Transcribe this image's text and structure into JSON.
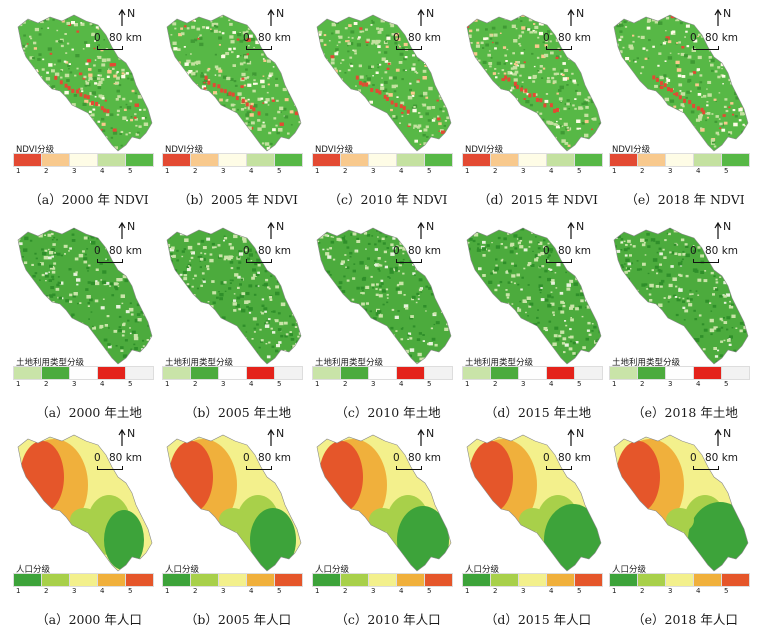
{
  "north_label": "N",
  "scale_zero": "0",
  "scale_value": "80 km",
  "rows": [
    {
      "legend_title": "NDVI分级",
      "legend_numbers": [
        "1",
        "2",
        "3",
        "4",
        "5"
      ],
      "legend_colors": [
        "#e34a33",
        "#f8c98d",
        "#fefce6",
        "#c4e1a0",
        "#57b846"
      ],
      "map_style": "ndvi",
      "captions": [
        "（a）2000 年 NDVI",
        "（b）2005 年 NDVI",
        "（c）2010 年 NDVI",
        "（d）2015 年 NDVI",
        "（e）2018 年 NDVI"
      ]
    },
    {
      "legend_title": "土地利用类型分级",
      "legend_numbers": [
        "1",
        "2",
        "3",
        "4",
        "5"
      ],
      "legend_colors": [
        "#c9e4a8",
        "#4cab3d",
        "#fefefe",
        "#e4231b",
        "#f2f2f2"
      ],
      "map_style": "land",
      "captions": [
        "（a）2000 年土地",
        "（b）2005 年土地",
        "（c）2010 年土地",
        "（d）2015 年土地",
        "（e）2018 年土地"
      ]
    },
    {
      "legend_title": "人口分级",
      "legend_numbers": [
        "1",
        "2",
        "3",
        "4",
        "5"
      ],
      "legend_colors": [
        "#3da33a",
        "#a8d04a",
        "#f3f08c",
        "#f0b03c",
        "#e5562a"
      ],
      "map_style": "pop",
      "captions": [
        "（a）2000 年人口",
        "（b）2005 年人口",
        "（c）2010 年人口",
        "（d）2015 年人口",
        "（e）2018 年人口"
      ]
    }
  ]
}
